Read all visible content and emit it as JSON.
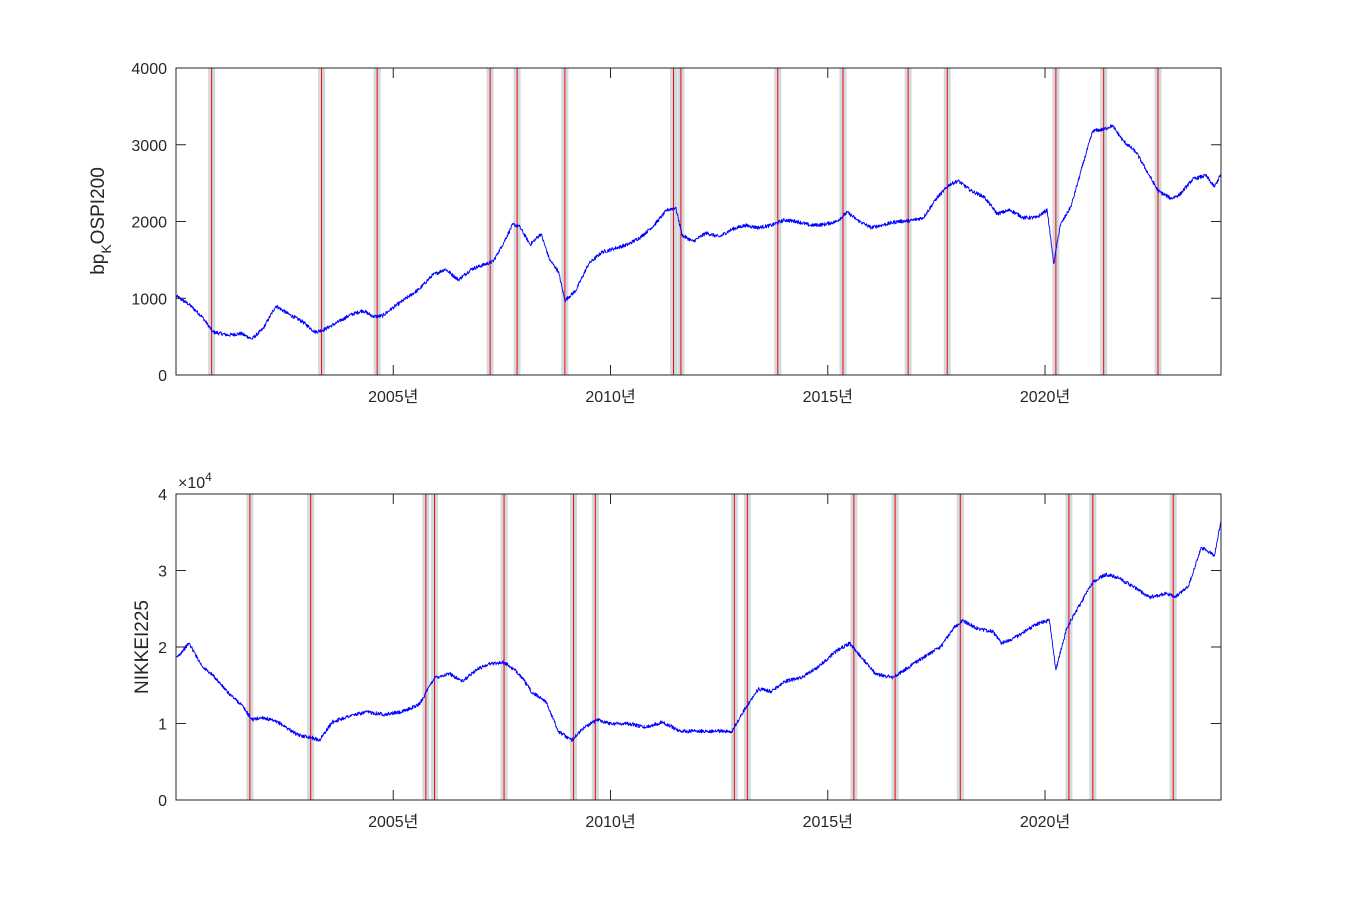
{
  "chart_data": [
    {
      "type": "line",
      "ylabel": {
        "base": "bp",
        "sub": "K",
        "rest": "OSPI200"
      },
      "xlim": [
        2000.0,
        2024.05
      ],
      "ylim": [
        0,
        4000
      ],
      "yticks": [
        0,
        1000,
        2000,
        3000,
        4000
      ],
      "ytick_labels": [
        "0",
        "1000",
        "2000",
        "3000",
        "4000"
      ],
      "xticks": [
        2005,
        2010,
        2015,
        2020
      ],
      "xtick_labels": [
        "2005년",
        "2010년",
        "2015년",
        "2020년"
      ],
      "grid": false,
      "series_color": "#0000ff",
      "event_color": "#ff0000",
      "band_color": "#c9d3d8",
      "events": [
        2000.82,
        2003.35,
        2004.63,
        2007.23,
        2007.85,
        2008.95,
        2011.45,
        2011.62,
        2013.85,
        2015.35,
        2016.85,
        2017.75,
        2020.25,
        2021.35,
        2022.6
      ],
      "series": [
        {
          "x": [
            2000.0,
            2000.3,
            2000.6,
            2000.85,
            2001.2,
            2001.5,
            2001.75,
            2002.0,
            2002.3,
            2002.6,
            2002.9,
            2003.2,
            2003.4,
            2003.7,
            2004.0,
            2004.3,
            2004.55,
            2004.75,
            2005.0,
            2005.3,
            2005.6,
            2005.9,
            2006.2,
            2006.5,
            2006.8,
            2007.1,
            2007.3,
            2007.5,
            2007.75,
            2007.9,
            2008.15,
            2008.4,
            2008.6,
            2008.8,
            2008.95,
            2009.2,
            2009.5,
            2009.8,
            2010.1,
            2010.4,
            2010.7,
            2011.0,
            2011.3,
            2011.5,
            2011.65,
            2011.9,
            2012.2,
            2012.5,
            2012.8,
            2013.1,
            2013.4,
            2013.7,
            2014.0,
            2014.3,
            2014.6,
            2014.9,
            2015.2,
            2015.45,
            2015.7,
            2016.0,
            2016.3,
            2016.6,
            2016.9,
            2017.2,
            2017.5,
            2017.8,
            2018.0,
            2018.3,
            2018.6,
            2018.9,
            2019.2,
            2019.5,
            2019.8,
            2020.05,
            2020.2,
            2020.35,
            2020.6,
            2020.9,
            2021.1,
            2021.35,
            2021.55,
            2021.8,
            2022.1,
            2022.3,
            2022.6,
            2022.9,
            2023.1,
            2023.4,
            2023.7,
            2023.9,
            2024.05
          ],
          "y": [
            1030,
            920,
            760,
            560,
            520,
            540,
            470,
            600,
            900,
            790,
            700,
            560,
            590,
            680,
            780,
            840,
            760,
            770,
            880,
            1000,
            1120,
            1300,
            1380,
            1240,
            1380,
            1440,
            1480,
            1680,
            1960,
            1940,
            1700,
            1840,
            1500,
            1350,
            970,
            1100,
            1450,
            1600,
            1650,
            1700,
            1800,
            1950,
            2150,
            2180,
            1820,
            1740,
            1850,
            1800,
            1900,
            1950,
            1920,
            1950,
            2020,
            2000,
            1950,
            1960,
            2000,
            2120,
            2010,
            1920,
            1960,
            2000,
            2010,
            2050,
            2300,
            2480,
            2530,
            2400,
            2320,
            2100,
            2150,
            2050,
            2050,
            2150,
            1450,
            1950,
            2200,
            2800,
            3180,
            3200,
            3250,
            3050,
            2900,
            2700,
            2400,
            2300,
            2350,
            2550,
            2600,
            2450,
            2620
          ]
        }
      ]
    },
    {
      "type": "line",
      "ylabel": {
        "base": "NIKKEI225",
        "sub": "",
        "rest": ""
      },
      "exponent_label": {
        "base": "×10",
        "sup": "4"
      },
      "xlim": [
        2000.0,
        2024.05
      ],
      "ylim": [
        0,
        40000
      ],
      "yticks": [
        0,
        10000,
        20000,
        30000,
        40000
      ],
      "ytick_labels": [
        "0",
        "1",
        "2",
        "3",
        "4"
      ],
      "xticks": [
        2005,
        2010,
        2015,
        2020
      ],
      "xtick_labels": [
        "2005년",
        "2010년",
        "2015년",
        "2020년"
      ],
      "grid": false,
      "series_color": "#0000ff",
      "event_color": "#ff0000",
      "band_color": "#c9d3d8",
      "events": [
        2001.7,
        2003.1,
        2005.75,
        2005.95,
        2007.55,
        2009.15,
        2009.65,
        2012.85,
        2013.15,
        2015.6,
        2016.55,
        2018.05,
        2020.55,
        2021.1,
        2022.95
      ],
      "series": [
        {
          "x": [
            2000.0,
            2000.15,
            2000.3,
            2000.6,
            2000.9,
            2001.2,
            2001.5,
            2001.75,
            2002.0,
            2002.4,
            2002.8,
            2003.1,
            2003.3,
            2003.6,
            2004.0,
            2004.4,
            2004.8,
            2005.2,
            2005.6,
            2005.95,
            2006.3,
            2006.6,
            2006.9,
            2007.2,
            2007.55,
            2007.9,
            2008.2,
            2008.5,
            2008.8,
            2009.1,
            2009.4,
            2009.7,
            2010.0,
            2010.4,
            2010.8,
            2011.2,
            2011.6,
            2012.0,
            2012.4,
            2012.8,
            2013.1,
            2013.4,
            2013.7,
            2014.0,
            2014.4,
            2014.8,
            2015.2,
            2015.5,
            2015.8,
            2016.1,
            2016.5,
            2016.9,
            2017.3,
            2017.6,
            2017.9,
            2018.1,
            2018.4,
            2018.8,
            2019.0,
            2019.4,
            2019.8,
            2020.1,
            2020.25,
            2020.5,
            2020.9,
            2021.1,
            2021.4,
            2021.7,
            2022.0,
            2022.4,
            2022.8,
            2023.0,
            2023.3,
            2023.6,
            2023.9,
            2024.05
          ],
          "y": [
            18500,
            19500,
            20500,
            17500,
            16000,
            14000,
            12500,
            10500,
            10800,
            10000,
            8500,
            8200,
            7800,
            10200,
            11000,
            11500,
            11200,
            11500,
            12500,
            16000,
            16500,
            15500,
            17000,
            17800,
            18000,
            16500,
            14000,
            13000,
            9000,
            7800,
            9500,
            10500,
            10000,
            10000,
            9500,
            10200,
            9000,
            9000,
            9000,
            9000,
            12000,
            14500,
            14200,
            15500,
            16000,
            17500,
            19500,
            20500,
            18500,
            16500,
            16000,
            17500,
            19000,
            20000,
            22500,
            23500,
            22500,
            22000,
            20500,
            21500,
            23000,
            23500,
            17000,
            22500,
            26500,
            28500,
            29500,
            29000,
            28000,
            26500,
            27000,
            26500,
            28000,
            33000,
            32000,
            36500
          ]
        }
      ]
    }
  ]
}
